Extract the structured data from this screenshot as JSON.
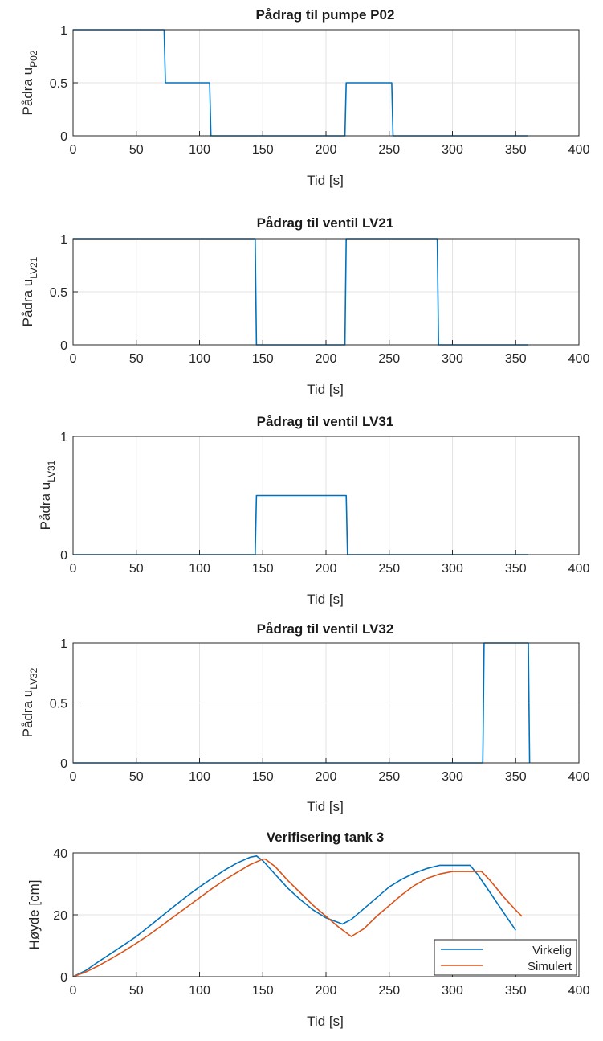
{
  "chart_data": [
    {
      "type": "line",
      "title": "Pådrag til pumpe P02",
      "xlabel": "Tid [s]",
      "ylabel": "Pådra u",
      "ylabel_sub": "P02",
      "xlim": [
        0,
        400
      ],
      "ylim": [
        0,
        1
      ],
      "xticks": [
        "0",
        "50",
        "100",
        "150",
        "200",
        "250",
        "300",
        "350",
        "400"
      ],
      "yticks": [
        "0",
        "0.5",
        "1"
      ],
      "yticks_values": [
        0,
        0.5,
        1
      ],
      "grid": true,
      "series": [
        {
          "color": "#0072BD",
          "x": [
            0,
            72,
            73,
            108,
            109,
            215,
            216,
            252,
            253,
            360
          ],
          "y": [
            1,
            1,
            0.5,
            0.5,
            0,
            0,
            0.5,
            0.5,
            0,
            0
          ]
        }
      ]
    },
    {
      "type": "line",
      "title": "Pådrag til ventil LV21",
      "xlabel": "Tid [s]",
      "ylabel": "Pådra u",
      "ylabel_sub": "LV21",
      "xlim": [
        0,
        400
      ],
      "ylim": [
        0,
        1
      ],
      "xticks": [
        "0",
        "50",
        "100",
        "150",
        "200",
        "250",
        "300",
        "350",
        "400"
      ],
      "yticks": [
        "0",
        "0.5",
        "1"
      ],
      "yticks_values": [
        0,
        0.5,
        1
      ],
      "grid": true,
      "series": [
        {
          "color": "#0072BD",
          "x": [
            0,
            144,
            145,
            215,
            216,
            288,
            289,
            360
          ],
          "y": [
            1,
            1,
            0,
            0,
            1,
            1,
            0,
            0
          ]
        }
      ]
    },
    {
      "type": "line",
      "title": "Pådrag til ventil LV31",
      "xlabel": "Tid [s]",
      "ylabel": "Pådra u",
      "ylabel_sub": "LV31",
      "xlim": [
        0,
        400
      ],
      "ylim": [
        0,
        1
      ],
      "xticks": [
        "0",
        "50",
        "100",
        "150",
        "200",
        "250",
        "300",
        "350",
        "400"
      ],
      "yticks": [
        "0",
        "1"
      ],
      "yticks_values": [
        0,
        1
      ],
      "grid": true,
      "series": [
        {
          "color": "#0072BD",
          "x": [
            0,
            144,
            145,
            216,
            217,
            360
          ],
          "y": [
            0,
            0,
            0.5,
            0.5,
            0,
            0
          ]
        }
      ]
    },
    {
      "type": "line",
      "title": "Pådrag til ventil LV32",
      "xlabel": "Tid [s]",
      "ylabel": "Pådra u",
      "ylabel_sub": "LV32",
      "xlim": [
        0,
        400
      ],
      "ylim": [
        0,
        1
      ],
      "xticks": [
        "0",
        "50",
        "100",
        "150",
        "200",
        "250",
        "300",
        "350",
        "400"
      ],
      "yticks": [
        "0",
        "0.5",
        "1"
      ],
      "yticks_values": [
        0,
        0.5,
        1
      ],
      "grid": true,
      "series": [
        {
          "color": "#0072BD",
          "x": [
            0,
            324,
            325,
            360,
            361
          ],
          "y": [
            0,
            0,
            1,
            1,
            0
          ]
        }
      ]
    },
    {
      "type": "line",
      "title": "Verifisering tank 3",
      "xlabel": "Tid [s]",
      "ylabel": "Høyde [cm]",
      "ylabel_sub": "",
      "xlim": [
        0,
        400
      ],
      "ylim": [
        0,
        40
      ],
      "xticks": [
        "0",
        "50",
        "100",
        "150",
        "200",
        "250",
        "300",
        "350",
        "400"
      ],
      "yticks": [
        "0",
        "20",
        "40"
      ],
      "yticks_values": [
        0,
        20,
        40
      ],
      "grid": true,
      "legend": {
        "location": "bottom-right",
        "entries": [
          "Virkelig",
          "Simulert"
        ]
      },
      "series": [
        {
          "name": "Virkelig",
          "color": "#0072BD",
          "x": [
            0,
            10,
            20,
            30,
            40,
            50,
            60,
            70,
            80,
            90,
            100,
            110,
            120,
            130,
            140,
            145,
            150,
            160,
            170,
            180,
            190,
            200,
            213,
            220,
            230,
            240,
            250,
            260,
            270,
            280,
            290,
            300,
            314,
            320,
            330,
            340,
            350
          ],
          "y": [
            0,
            2,
            4.8,
            7.5,
            10.2,
            13,
            16.2,
            19.5,
            22.8,
            26,
            29,
            31.8,
            34.5,
            36.8,
            38.6,
            39,
            37.5,
            33,
            28.5,
            24.8,
            21.5,
            19,
            17,
            18.5,
            22,
            25.5,
            29,
            31.5,
            33.5,
            35,
            36,
            36,
            36,
            33,
            27,
            21,
            15
          ]
        },
        {
          "name": "Simulert",
          "color": "#D95319",
          "x": [
            0,
            10,
            20,
            30,
            40,
            50,
            60,
            70,
            80,
            90,
            100,
            110,
            120,
            130,
            140,
            150,
            152,
            160,
            170,
            180,
            190,
            200,
            210,
            220,
            230,
            240,
            250,
            260,
            270,
            280,
            290,
            300,
            310,
            323,
            330,
            340,
            350,
            355
          ],
          "y": [
            0,
            1.5,
            3.5,
            5.8,
            8.2,
            10.8,
            13.5,
            16.5,
            19.5,
            22.5,
            25.5,
            28.5,
            31.3,
            33.8,
            36.2,
            38,
            38,
            35.5,
            31,
            27,
            23,
            19.5,
            16,
            13,
            15.5,
            19.5,
            23,
            26.5,
            29.5,
            31.8,
            33.2,
            34,
            34,
            34,
            31,
            26,
            21.5,
            19.5
          ]
        }
      ]
    }
  ]
}
